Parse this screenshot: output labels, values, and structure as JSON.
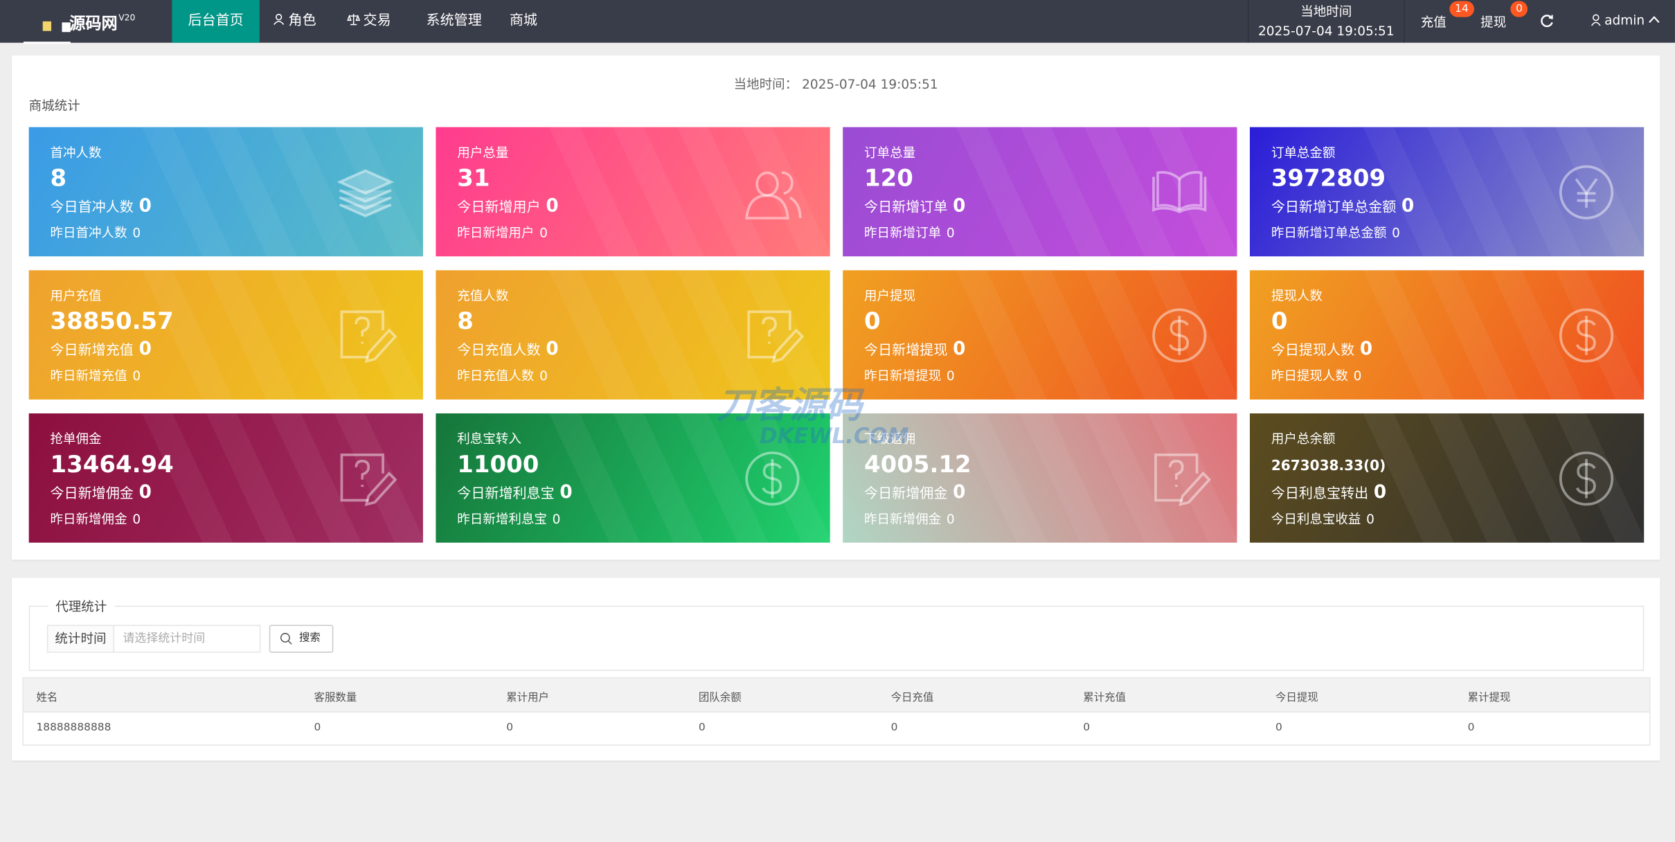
{
  "header": {
    "logo": "源码网",
    "version": "V20",
    "menu": [
      "后台首页",
      "角色",
      "交易",
      "系统管理",
      "商城"
    ],
    "time_label": "当地时间",
    "time": "2025-07-04 19:05:51",
    "recharge": "充值",
    "recharge_badge": "14",
    "withdraw": "提现",
    "withdraw_badge": "0",
    "user": "admin"
  },
  "page": {
    "time_label": "当地时间：",
    "time": "2025-07-04 19:05:51",
    "section_title": "商城统计"
  },
  "cards": [
    {
      "title": "首冲人数",
      "value": "8",
      "line1_label": "今日首冲人数",
      "line1_value": "0",
      "line2_label": "昨日首冲人数",
      "line2_value": "0"
    },
    {
      "title": "用户总量",
      "value": "31",
      "line1_label": "今日新增用户",
      "line1_value": "0",
      "line2_label": "昨日新增用户",
      "line2_value": "0"
    },
    {
      "title": "订单总量",
      "value": "120",
      "line1_label": "今日新增订单",
      "line1_value": "0",
      "line2_label": "昨日新增订单",
      "line2_value": "0"
    },
    {
      "title": "订单总金额",
      "value": "3972809",
      "line1_label": "今日新增订单总金额",
      "line1_value": "0",
      "line2_label": "昨日新增订单总金额",
      "line2_value": "0"
    },
    {
      "title": "用户充值",
      "value": "38850.57",
      "line1_label": "今日新增充值",
      "line1_value": "0",
      "line2_label": "昨日新增充值",
      "line2_value": "0"
    },
    {
      "title": "充值人数",
      "value": "8",
      "line1_label": "今日充值人数",
      "line1_value": "0",
      "line2_label": "昨日充值人数",
      "line2_value": "0"
    },
    {
      "title": "用户提现",
      "value": "0",
      "line1_label": "今日新增提现",
      "line1_value": "0",
      "line2_label": "昨日新增提现",
      "line2_value": "0"
    },
    {
      "title": "提现人数",
      "value": "0",
      "line1_label": "今日提现人数",
      "line1_value": "0",
      "line2_label": "昨日提现人数",
      "line2_value": "0"
    },
    {
      "title": "抢单佣金",
      "value": "13464.94",
      "line1_label": "今日新增佣金",
      "line1_value": "0",
      "line2_label": "昨日新增佣金",
      "line2_value": "0"
    },
    {
      "title": "利息宝转入",
      "value": "11000",
      "line1_label": "今日新增利息宝",
      "line1_value": "0",
      "line2_label": "昨日新增利息宝",
      "line2_value": "0"
    },
    {
      "title": "下级返佣",
      "value": "4005.12",
      "line1_label": "今日新增佣金",
      "line1_value": "0",
      "line2_label": "昨日新增佣金",
      "line2_value": "0"
    },
    {
      "title": "用户总余额",
      "value": "2673038.33(0)",
      "line1_label": "今日利息宝转出",
      "line1_value": "0",
      "line2_label": "今日利息宝收益",
      "line2_value": "0"
    }
  ],
  "agent": {
    "title": "代理统计",
    "filter_label": "统计时间",
    "filter_placeholder": "请选择统计时间",
    "search_button": "搜索",
    "columns": [
      "姓名",
      "客服数量",
      "累计用户",
      "团队余额",
      "今日充值",
      "累计充值",
      "今日提现",
      "累计提现"
    ],
    "rows": [
      [
        "18888888888",
        "0",
        "0",
        "0",
        "0",
        "0",
        "0",
        "0"
      ]
    ]
  },
  "watermark": {
    "text": "刀客源码",
    "subtext": "DKEWL.COM"
  }
}
